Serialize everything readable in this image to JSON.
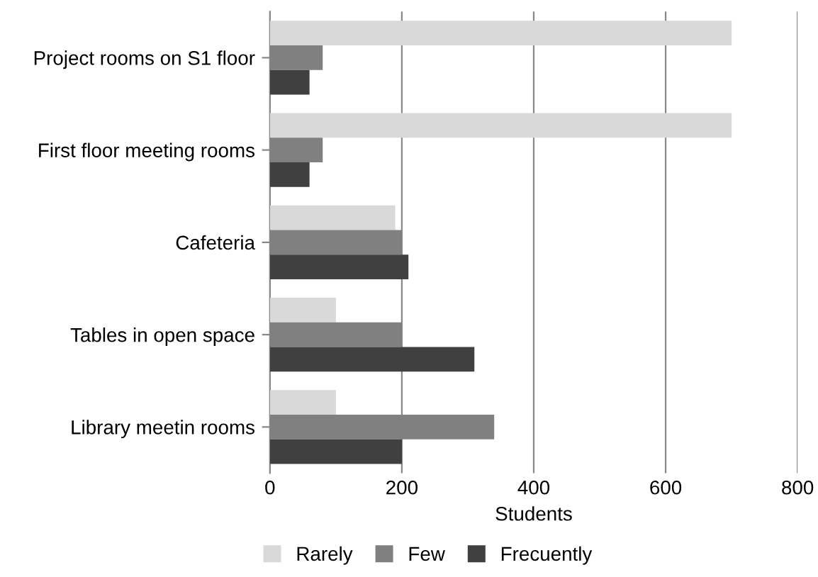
{
  "chart_data": {
    "type": "bar",
    "orientation": "horizontal",
    "xlabel": "Students",
    "categories": [
      "Project rooms on S1 floor",
      "First floor meeting rooms",
      "Cafeteria",
      "Tables in open space",
      "Library meetin rooms"
    ],
    "series": [
      {
        "name": "Rarely",
        "color": "#d9d9d9",
        "values": [
          700,
          700,
          190,
          100,
          100
        ]
      },
      {
        "name": "Few",
        "color": "#808080",
        "values": [
          80,
          80,
          200,
          200,
          340
        ]
      },
      {
        "name": "Frecuently",
        "color": "#404040",
        "values": [
          60,
          60,
          210,
          310,
          200
        ]
      }
    ],
    "xlim": [
      0,
      800
    ],
    "xticks": [
      0,
      200,
      400,
      600,
      800
    ],
    "grid": "x",
    "legend": "bottom"
  }
}
